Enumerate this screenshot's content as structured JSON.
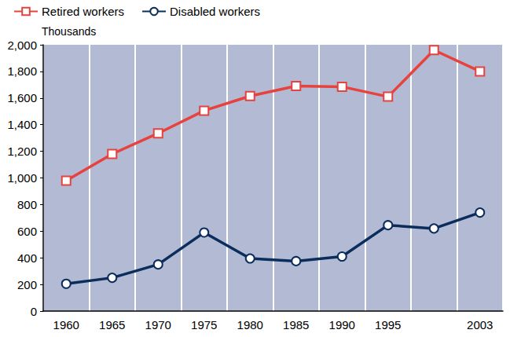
{
  "chart_data": {
    "type": "line",
    "y_label": "Thousands",
    "categories": [
      "1960",
      "1965",
      "1970",
      "1975",
      "1980",
      "1985",
      "1990",
      "1995",
      null,
      "2003"
    ],
    "series": [
      {
        "name": "Retired workers",
        "color": "#e8423f",
        "marker": "square",
        "values": [
          980,
          1180,
          1335,
          1505,
          1615,
          1690,
          1685,
          1610,
          1960,
          1800
        ]
      },
      {
        "name": "Disabled workers",
        "color": "#0b2d5c",
        "marker": "circle",
        "values": [
          205,
          250,
          350,
          590,
          395,
          375,
          410,
          645,
          620,
          740
        ]
      }
    ],
    "ylim": [
      0,
      2000
    ],
    "yticks": [
      0,
      200,
      400,
      600,
      800,
      {
        "value": 1000,
        "label": "1,000"
      },
      {
        "value": 1200,
        "label": "1,200"
      },
      {
        "value": 1400,
        "label": "1,400"
      },
      {
        "value": 1600,
        "label": "1,600"
      },
      {
        "value": 1800,
        "label": "1,800"
      },
      {
        "value": 2000,
        "label": "2,000"
      }
    ],
    "grid": true,
    "legend": "top-left"
  }
}
